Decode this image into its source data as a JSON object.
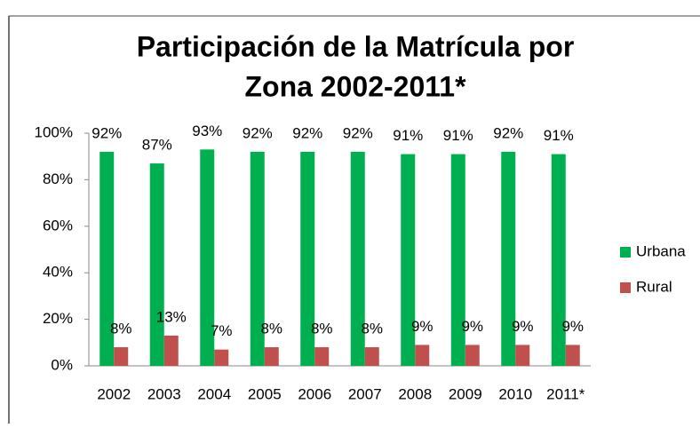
{
  "chart_data": {
    "type": "bar",
    "title": [
      "Participación de la Matrícula por",
      "Zona 2002-2011*"
    ],
    "categories": [
      "2002",
      "2003",
      "2004",
      "2005",
      "2006",
      "2007",
      "2008",
      "2009",
      "2010",
      "2011*"
    ],
    "series": [
      {
        "name": "Urbana",
        "color": "#00b050",
        "values": [
          92,
          87,
          93,
          92,
          92,
          92,
          91,
          91,
          92,
          91
        ],
        "value_labels": [
          "92%",
          "87%",
          "93%",
          "92%",
          "92%",
          "92%",
          "91%",
          "91%",
          "92%",
          "91%"
        ]
      },
      {
        "name": "Rural",
        "color": "#c0504d",
        "values": [
          8,
          13,
          7,
          8,
          8,
          8,
          9,
          9,
          9,
          9
        ],
        "value_labels": [
          "8%",
          "13%",
          "7%",
          "8%",
          "8%",
          "8%",
          "9%",
          "9%",
          "9%",
          "9%"
        ]
      }
    ],
    "ylim": [
      0,
      100
    ],
    "yticks": [
      {
        "value": 0,
        "label": "0%"
      },
      {
        "value": 20,
        "label": "20%"
      },
      {
        "value": 40,
        "label": "40%"
      },
      {
        "value": 60,
        "label": "60%"
      },
      {
        "value": 80,
        "label": "80%"
      },
      {
        "value": 100,
        "label": "100%"
      }
    ],
    "legend": "right"
  }
}
